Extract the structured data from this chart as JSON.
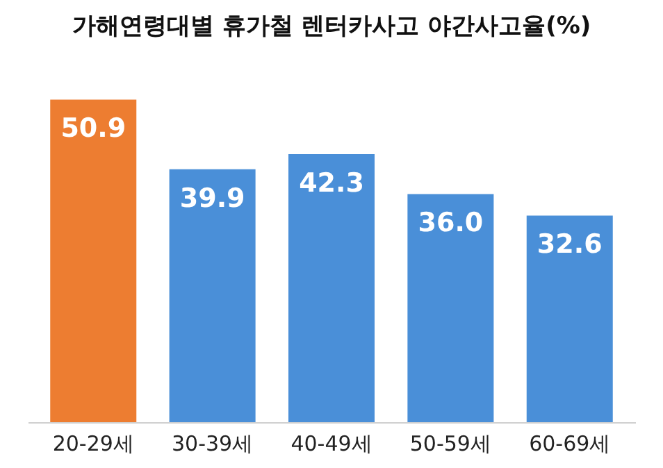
{
  "chart_data": {
    "type": "bar",
    "title": "가해연령대별 휴가철 렌터카사고 야간사고율(%)",
    "categories": [
      "20-29세",
      "30-39세",
      "40-49세",
      "50-59세",
      "60-69세"
    ],
    "values": [
      50.9,
      39.9,
      42.3,
      36.0,
      32.6
    ],
    "colors": [
      "#ed7d31",
      "#4a8fd8",
      "#4a8fd8",
      "#4a8fd8",
      "#4a8fd8"
    ],
    "value_labels": [
      "50.9",
      "39.9",
      "42.3",
      "36.0",
      "32.6"
    ],
    "grid": false,
    "tick_labels": "x"
  }
}
